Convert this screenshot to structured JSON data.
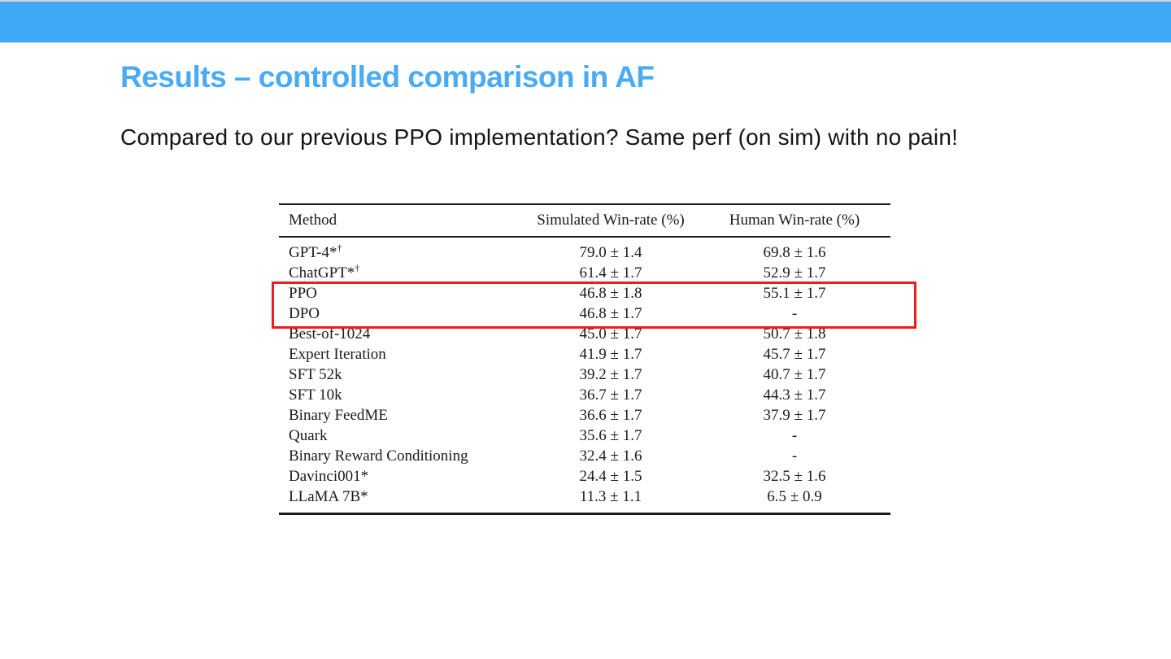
{
  "slide": {
    "title": "Results – controlled comparison in AF",
    "subtitle": "Compared to our previous PPO implementation? Same perf (on sim) with no pain!"
  },
  "colors": {
    "top_bar": "#3fa9f8",
    "title_text": "#4aabf5",
    "highlight_box": "#ee1d1d",
    "table_text": "#1b1b1b"
  },
  "table": {
    "columns": [
      "Method",
      "Simulated Win-rate (%)",
      "Human Win-rate (%)"
    ],
    "rows": [
      {
        "method": "GPT-4*",
        "method_sup": "†",
        "sim": "79.0 ± 1.4",
        "human": "69.8 ± 1.6",
        "highlighted": false
      },
      {
        "method": "ChatGPT*",
        "method_sup": "†",
        "sim": "61.4 ± 1.7",
        "human": "52.9 ± 1.7",
        "highlighted": false
      },
      {
        "method": "PPO",
        "method_sup": "",
        "sim": "46.8 ± 1.8",
        "human": "55.1 ± 1.7",
        "highlighted": true
      },
      {
        "method": "DPO",
        "method_sup": "",
        "sim": "46.8 ± 1.7",
        "human": "-",
        "highlighted": true
      },
      {
        "method": "Best-of-1024",
        "method_sup": "",
        "sim": "45.0 ± 1.7",
        "human": "50.7 ± 1.8",
        "highlighted": false
      },
      {
        "method": "Expert Iteration",
        "method_sup": "",
        "sim": "41.9 ± 1.7",
        "human": "45.7 ± 1.7",
        "highlighted": false
      },
      {
        "method": "SFT 52k",
        "method_sup": "",
        "sim": "39.2 ± 1.7",
        "human": "40.7 ± 1.7",
        "highlighted": false
      },
      {
        "method": "SFT 10k",
        "method_sup": "",
        "sim": "36.7 ± 1.7",
        "human": "44.3 ± 1.7",
        "highlighted": false
      },
      {
        "method": "Binary FeedME",
        "method_sup": "",
        "sim": "36.6 ± 1.7",
        "human": "37.9 ± 1.7",
        "highlighted": false
      },
      {
        "method": "Quark",
        "method_sup": "",
        "sim": "35.6 ± 1.7",
        "human": "-",
        "highlighted": false
      },
      {
        "method": "Binary Reward Conditioning",
        "method_sup": "",
        "sim": "32.4 ± 1.6",
        "human": "-",
        "highlighted": false
      },
      {
        "method": "Davinci001*",
        "method_sup": "",
        "sim": "24.4 ± 1.5",
        "human": "32.5 ± 1.6",
        "highlighted": false
      },
      {
        "method": "LLaMA 7B*",
        "method_sup": "",
        "sim": "11.3 ± 1.1",
        "human": "6.5 ± 0.9",
        "highlighted": false
      }
    ]
  }
}
